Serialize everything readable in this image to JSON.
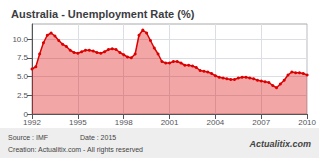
{
  "chart_data": {
    "type": "area",
    "title": "Australia - Unemployment Rate (%)",
    "x": [
      1992.0,
      1992.25,
      1992.5,
      1992.75,
      1993.0,
      1993.25,
      1993.5,
      1993.75,
      1994.0,
      1994.25,
      1994.5,
      1994.75,
      1995.0,
      1995.25,
      1995.5,
      1995.75,
      1996.0,
      1996.25,
      1996.5,
      1996.75,
      1997.0,
      1997.25,
      1997.5,
      1997.75,
      1998.0,
      1998.25,
      1998.5,
      1998.75,
      1999.0,
      1999.25,
      1999.5,
      1999.75,
      2000.0,
      2000.25,
      2000.5,
      2000.75,
      2001.0,
      2001.25,
      2001.5,
      2001.75,
      2002.0,
      2002.25,
      2002.5,
      2002.75,
      2003.0,
      2003.25,
      2003.5,
      2003.75,
      2004.0,
      2004.25,
      2004.5,
      2004.75,
      2005.0,
      2005.25,
      2005.5,
      2005.75,
      2006.0,
      2006.25,
      2006.5,
      2006.75,
      2007.0,
      2007.25,
      2007.5,
      2007.75,
      2008.0,
      2008.25,
      2008.5,
      2008.75,
      2009.0,
      2009.25,
      2009.5,
      2009.75,
      2010.0
    ],
    "values": [
      6.0,
      6.3,
      8.0,
      9.5,
      10.5,
      10.8,
      10.4,
      9.8,
      9.3,
      9.0,
      8.5,
      8.2,
      8.1,
      8.3,
      8.5,
      8.5,
      8.4,
      8.2,
      8.1,
      8.3,
      8.6,
      8.7,
      8.6,
      8.2,
      7.9,
      7.6,
      7.5,
      8.0,
      10.5,
      11.2,
      10.8,
      9.8,
      8.8,
      8.0,
      7.0,
      6.8,
      6.8,
      7.0,
      7.0,
      6.8,
      6.5,
      6.5,
      6.4,
      6.2,
      5.8,
      5.7,
      5.6,
      5.4,
      5.1,
      4.9,
      4.8,
      4.7,
      4.6,
      4.6,
      4.8,
      4.9,
      4.9,
      4.8,
      4.7,
      4.5,
      4.4,
      4.3,
      4.2,
      3.8,
      3.5,
      4.0,
      4.5,
      5.2,
      5.6,
      5.5,
      5.5,
      5.4,
      5.2
    ],
    "color": "#dd0000",
    "marker": "circle",
    "xlim": [
      1992,
      2010
    ],
    "xticks": [
      1992,
      1995,
      1998,
      2001,
      2004,
      2007,
      2010
    ],
    "ylim": [
      0,
      12
    ],
    "yticks": [
      0,
      2.5,
      {
        "value": 5.0,
        "label": "5.0"
      },
      7.5,
      {
        "value": 10.0,
        "label": "10.0"
      }
    ],
    "grid": true,
    "annotations": [
      "Source : IMF",
      "Date : 2015",
      "Creation: Actualitix.com - All rights reserved",
      "Actualitix.com"
    ]
  }
}
